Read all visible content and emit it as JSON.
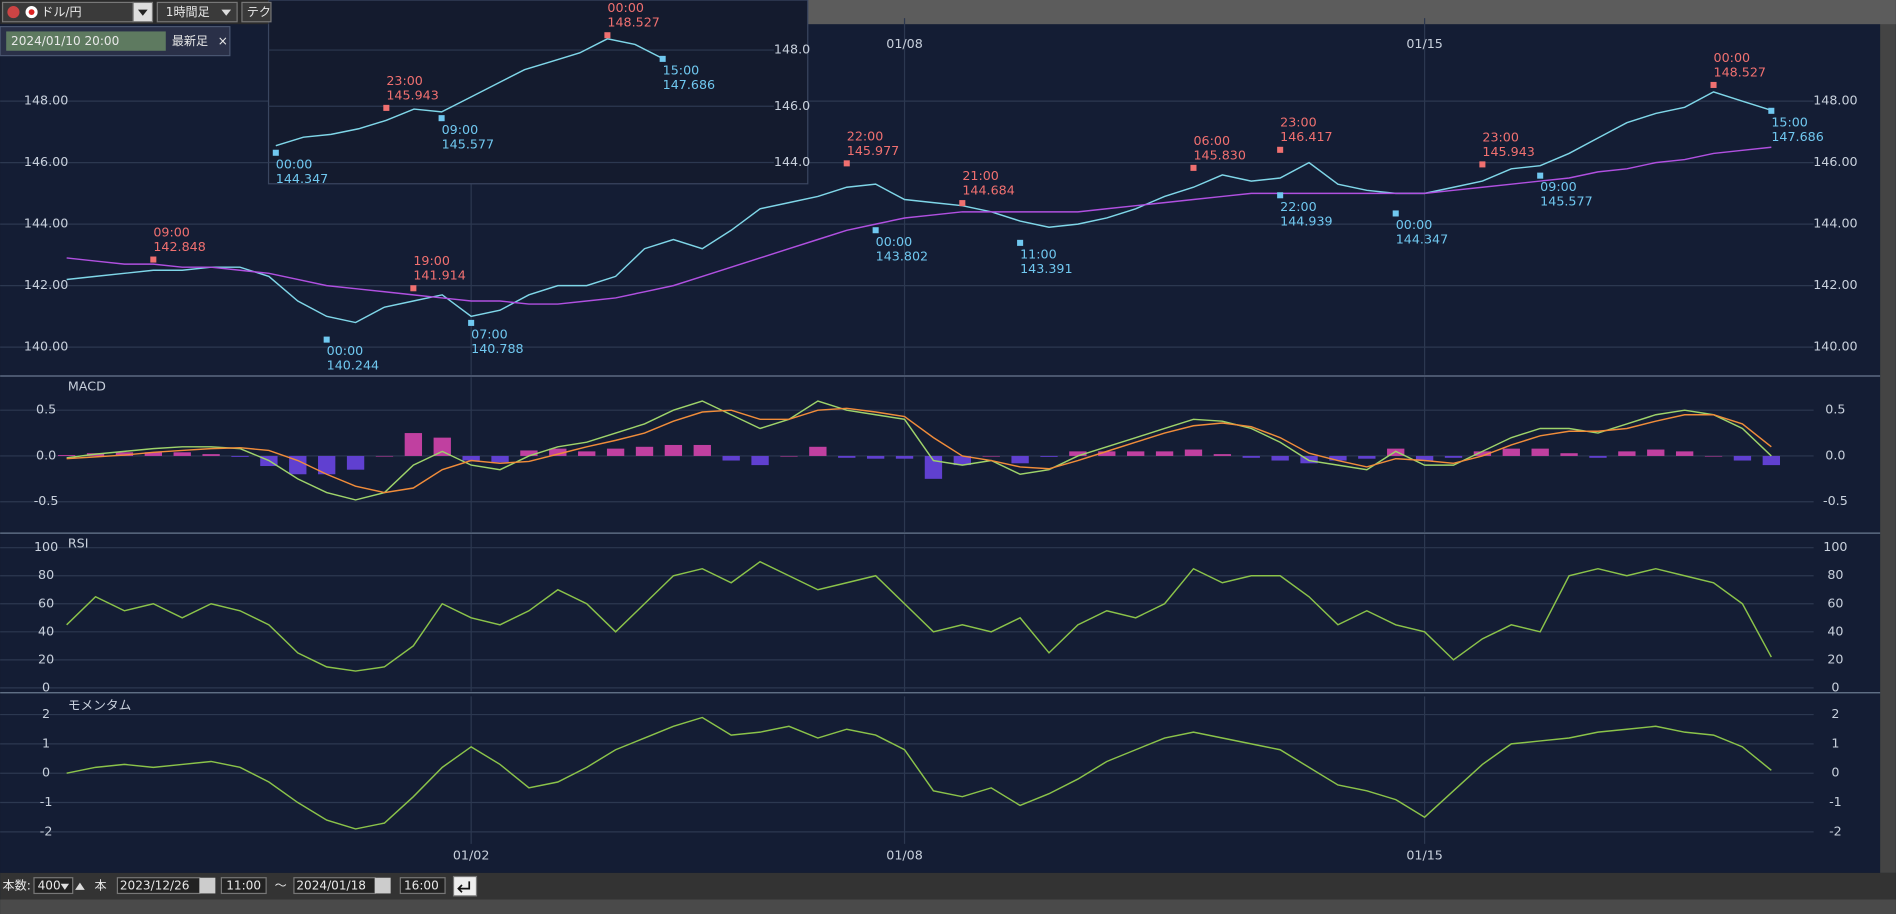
{
  "toolbar": {
    "pair": "ドル/円",
    "timeframe": "1時間足",
    "tech": "テク",
    "cursor_time": "2024/01/10 20:00",
    "latest": "最新足",
    "close": "×"
  },
  "footer": {
    "count_label": "本数:",
    "count": "400",
    "count_unit": "本",
    "start_date": "2023/12/26",
    "start_time": "11:00",
    "tilde": "〜",
    "end_date": "2024/01/18",
    "end_time": "16:00"
  },
  "chart_data": [
    {
      "type": "line",
      "categories": [
        null,
        null,
        null,
        null,
        null,
        null,
        null,
        null,
        null,
        null,
        null,
        null,
        null,
        null,
        "01/02",
        null,
        null,
        null,
        null,
        null,
        null,
        null,
        null,
        null,
        null,
        null,
        null,
        null,
        null,
        "01/08",
        null,
        null,
        null,
        null,
        null,
        null,
        null,
        null,
        null,
        null,
        null,
        null,
        null,
        null,
        null,
        null,
        null,
        "01/15",
        null,
        null,
        null,
        null,
        null,
        null,
        null,
        null,
        null,
        null,
        null,
        null
      ],
      "series": [
        {
          "color": "#7fd6e8",
          "values": [
            142.2,
            142.3,
            142.4,
            142.5,
            142.5,
            142.6,
            142.6,
            142.3,
            141.5,
            141.0,
            140.8,
            141.3,
            141.5,
            141.7,
            141.0,
            141.2,
            141.7,
            142.0,
            142.0,
            142.3,
            143.2,
            143.5,
            143.2,
            143.8,
            144.5,
            144.7,
            144.9,
            145.2,
            145.3,
            144.8,
            144.7,
            144.6,
            144.4,
            144.1,
            143.9,
            144.0,
            144.2,
            144.5,
            144.9,
            145.2,
            145.6,
            145.4,
            145.5,
            146.0,
            145.3,
            145.1,
            145.0,
            145.0,
            145.2,
            145.4,
            145.8,
            145.9,
            146.3,
            146.8,
            147.3,
            147.6,
            147.8,
            148.3,
            148.0,
            147.7
          ]
        },
        {
          "color": "#b050e0",
          "values": [
            142.9,
            142.8,
            142.7,
            142.7,
            142.6,
            142.6,
            142.5,
            142.4,
            142.2,
            142.0,
            141.9,
            141.8,
            141.7,
            141.6,
            141.5,
            141.5,
            141.4,
            141.4,
            141.5,
            141.6,
            141.8,
            142.0,
            142.3,
            142.6,
            142.9,
            143.2,
            143.5,
            143.8,
            144.0,
            144.2,
            144.3,
            144.4,
            144.4,
            144.4,
            144.4,
            144.4,
            144.5,
            144.6,
            144.7,
            144.8,
            144.9,
            145.0,
            145.0,
            145.0,
            145.0,
            145.0,
            145.0,
            145.0,
            145.1,
            145.2,
            145.3,
            145.4,
            145.5,
            145.7,
            145.8,
            146.0,
            146.1,
            146.3,
            146.4,
            146.5
          ]
        }
      ],
      "highs": [
        null,
        null,
        null,
        142.848,
        null,
        null,
        null,
        null,
        null,
        null,
        null,
        null,
        141.914,
        null,
        null,
        null,
        null,
        null,
        null,
        null,
        null,
        null,
        null,
        null,
        null,
        null,
        null,
        145.977,
        null,
        null,
        null,
        144.684,
        null,
        null,
        null,
        null,
        null,
        null,
        null,
        145.83,
        null,
        null,
        146.417,
        null,
        null,
        null,
        null,
        null,
        null,
        145.943,
        null,
        null,
        null,
        null,
        null,
        null,
        null,
        148.527,
        null,
        null
      ],
      "high_labels": [
        null,
        null,
        null,
        "142.848",
        null,
        null,
        null,
        null,
        null,
        null,
        null,
        null,
        "141.914",
        null,
        null,
        null,
        null,
        null,
        null,
        null,
        null,
        null,
        null,
        null,
        null,
        null,
        null,
        "145.977",
        null,
        null,
        null,
        "144.684",
        null,
        null,
        null,
        null,
        null,
        null,
        null,
        "145.830",
        null,
        null,
        "146.417",
        null,
        null,
        null,
        null,
        null,
        null,
        "145.943",
        null,
        null,
        null,
        null,
        null,
        null,
        null,
        "148.527",
        null,
        null
      ],
      "high_times": [
        null,
        null,
        null,
        "09:00",
        null,
        null,
        null,
        null,
        null,
        null,
        null,
        null,
        "19:00",
        null,
        null,
        null,
        null,
        null,
        null,
        null,
        null,
        null,
        null,
        null,
        null,
        null,
        null,
        "22:00",
        null,
        null,
        null,
        "21:00",
        null,
        null,
        null,
        null,
        null,
        null,
        null,
        "06:00",
        null,
        null,
        "23:00",
        null,
        null,
        null,
        null,
        null,
        null,
        "23:00",
        null,
        null,
        null,
        null,
        null,
        null,
        null,
        "00:00",
        null,
        null
      ],
      "lows": [
        null,
        null,
        null,
        null,
        null,
        null,
        null,
        null,
        null,
        140.244,
        null,
        null,
        null,
        null,
        140.788,
        null,
        null,
        null,
        null,
        null,
        null,
        null,
        null,
        null,
        null,
        null,
        null,
        null,
        143.802,
        null,
        null,
        null,
        null,
        143.391,
        null,
        null,
        null,
        null,
        null,
        null,
        null,
        null,
        144.939,
        null,
        null,
        null,
        144.347,
        null,
        null,
        null,
        null,
        145.577,
        null,
        null,
        null,
        null,
        null,
        null,
        null,
        147.686
      ],
      "low_times": [
        null,
        null,
        null,
        null,
        null,
        null,
        null,
        null,
        null,
        "00:00",
        null,
        null,
        null,
        null,
        "07:00",
        null,
        null,
        null,
        null,
        null,
        null,
        null,
        null,
        null,
        null,
        null,
        null,
        null,
        "00:00",
        null,
        null,
        null,
        null,
        "11:00",
        null,
        null,
        null,
        null,
        null,
        null,
        null,
        null,
        "22:00",
        null,
        null,
        null,
        "00:00",
        null,
        null,
        null,
        null,
        "09:00",
        null,
        null,
        null,
        null,
        null,
        null,
        null,
        "15:00"
      ],
      "ylim": [
        139.1,
        150.7
      ],
      "yticks": [
        {
          "value": 140,
          "label": "140.00"
        },
        {
          "value": 142,
          "label": "142.00"
        },
        {
          "value": 144,
          "label": "144.00"
        },
        {
          "value": 146,
          "label": "146.00"
        },
        {
          "value": 148,
          "label": "148.00"
        }
      ],
      "grid": true
    },
    {
      "type": "line",
      "series": [
        {
          "color": "#7fd6e8",
          "values": [
            144.6,
            144.9,
            145.0,
            145.2,
            145.5,
            145.9,
            145.8,
            146.3,
            146.8,
            147.3,
            147.6,
            147.9,
            148.4,
            148.2,
            147.7
          ]
        }
      ],
      "highs": [
        null,
        null,
        null,
        null,
        145.943,
        null,
        null,
        null,
        null,
        null,
        null,
        null,
        148.527,
        null,
        null
      ],
      "high_labels": [
        null,
        null,
        null,
        null,
        "145.943",
        null,
        null,
        null,
        null,
        null,
        null,
        null,
        "148.527",
        null,
        null
      ],
      "high_times": [
        null,
        null,
        null,
        null,
        "23:00",
        null,
        null,
        null,
        null,
        null,
        null,
        null,
        "00:00",
        null,
        null
      ],
      "lows": [
        144.347,
        null,
        null,
        null,
        null,
        null,
        145.577,
        null,
        null,
        null,
        null,
        null,
        null,
        null,
        147.686
      ],
      "low_times": [
        "00:00",
        null,
        null,
        null,
        null,
        null,
        "09:00",
        null,
        null,
        null,
        null,
        null,
        null,
        null,
        "15:00"
      ],
      "ylim": [
        143.33,
        149.78
      ],
      "yticks": [
        {
          "value": 144,
          "label": "144.0"
        },
        {
          "value": 146,
          "label": "146.0"
        },
        {
          "value": 148,
          "label": "148.0"
        }
      ],
      "grid": true
    },
    {
      "type": "line",
      "title": "MACD",
      "series": [
        {
          "type": "bar",
          "color": "#c040a0",
          "negative_color": "#6040d0",
          "values": [
            0.01,
            0.03,
            0.04,
            0.04,
            0.04,
            0.02,
            -0.01,
            -0.11,
            -0.2,
            -0.2,
            -0.15,
            0.0,
            0.25,
            0.2,
            -0.05,
            -0.07,
            0.06,
            0.08,
            0.05,
            0.08,
            0.1,
            0.12,
            0.12,
            -0.05,
            -0.1,
            0.0,
            0.1,
            -0.02,
            -0.03,
            -0.03,
            -0.25,
            -0.1,
            0.0,
            -0.08,
            -0.01,
            0.05,
            0.05,
            0.05,
            0.05,
            0.07,
            0.02,
            -0.02,
            -0.05,
            -0.08,
            -0.05,
            -0.03,
            0.08,
            -0.05,
            -0.02,
            0.05,
            0.08,
            0.08,
            0.03,
            -0.02,
            0.05,
            0.07,
            0.05,
            0.0,
            -0.05,
            -0.1
          ]
        },
        {
          "color": "#9ed36a",
          "values": [
            -0.02,
            0.02,
            0.05,
            0.08,
            0.1,
            0.1,
            0.08,
            -0.05,
            -0.25,
            -0.4,
            -0.48,
            -0.4,
            -0.1,
            0.05,
            -0.1,
            -0.15,
            0.0,
            0.1,
            0.15,
            0.25,
            0.35,
            0.5,
            0.6,
            0.45,
            0.3,
            0.4,
            0.6,
            0.5,
            0.45,
            0.4,
            -0.05,
            -0.1,
            -0.05,
            -0.2,
            -0.15,
            0.0,
            0.1,
            0.2,
            0.3,
            0.4,
            0.38,
            0.3,
            0.15,
            -0.05,
            -0.1,
            -0.15,
            0.05,
            -0.1,
            -0.1,
            0.05,
            0.2,
            0.3,
            0.3,
            0.25,
            0.35,
            0.45,
            0.5,
            0.45,
            0.3,
            0.0
          ]
        },
        {
          "color": "#f08c3a",
          "values": [
            -0.03,
            -0.01,
            0.01,
            0.04,
            0.06,
            0.08,
            0.09,
            0.06,
            -0.05,
            -0.2,
            -0.33,
            -0.4,
            -0.35,
            -0.15,
            -0.05,
            -0.08,
            -0.06,
            0.02,
            0.1,
            0.17,
            0.25,
            0.38,
            0.48,
            0.5,
            0.4,
            0.4,
            0.5,
            0.52,
            0.48,
            0.43,
            0.2,
            0.0,
            -0.05,
            -0.12,
            -0.14,
            -0.05,
            0.05,
            0.15,
            0.25,
            0.33,
            0.36,
            0.32,
            0.2,
            0.03,
            -0.05,
            -0.12,
            -0.03,
            -0.05,
            -0.08,
            0.0,
            0.12,
            0.22,
            0.27,
            0.27,
            0.3,
            0.38,
            0.45,
            0.45,
            0.35,
            0.1
          ]
        }
      ],
      "ylim": [
        -0.83,
        0.86
      ],
      "yticks": [
        0.5,
        {
          "value": 0,
          "label": "0.0"
        },
        -0.5
      ],
      "grid": true
    },
    {
      "type": "line",
      "title": "RSI",
      "series": [
        {
          "color": "#8bc34a",
          "values": [
            45,
            65,
            55,
            60,
            50,
            60,
            55,
            45,
            25,
            15,
            12,
            15,
            30,
            60,
            50,
            45,
            55,
            70,
            60,
            40,
            60,
            80,
            85,
            75,
            90,
            80,
            70,
            75,
            80,
            60,
            40,
            45,
            40,
            50,
            25,
            45,
            55,
            50,
            60,
            85,
            75,
            80,
            80,
            65,
            45,
            55,
            45,
            40,
            20,
            35,
            45,
            40,
            80,
            85,
            80,
            85,
            80,
            75,
            60,
            22
          ]
        }
      ],
      "ylim": [
        -2.6,
        109.5
      ],
      "yticks": [
        0,
        20,
        40,
        60,
        80,
        100
      ],
      "grid": true
    },
    {
      "type": "line",
      "title": "モメンタム",
      "series": [
        {
          "color": "#8bc34a",
          "values": [
            0.0,
            0.2,
            0.3,
            0.2,
            0.3,
            0.4,
            0.2,
            -0.3,
            -1.0,
            -1.6,
            -1.9,
            -1.7,
            -0.8,
            0.2,
            0.9,
            0.3,
            -0.5,
            -0.3,
            0.2,
            0.8,
            1.2,
            1.6,
            1.9,
            1.3,
            1.4,
            1.6,
            1.2,
            1.5,
            1.3,
            0.8,
            -0.6,
            -0.8,
            -0.5,
            -1.1,
            -0.7,
            -0.2,
            0.4,
            0.8,
            1.2,
            1.4,
            1.2,
            1.0,
            0.8,
            0.2,
            -0.4,
            -0.6,
            -0.9,
            -1.5,
            -0.6,
            0.3,
            1.0,
            1.1,
            1.2,
            1.4,
            1.5,
            1.6,
            1.4,
            1.3,
            0.9,
            0.1
          ]
        }
      ],
      "ylim": [
        -2.41,
        2.62
      ],
      "yticks": [
        2,
        1,
        0,
        -1,
        -2
      ],
      "grid": true
    }
  ]
}
